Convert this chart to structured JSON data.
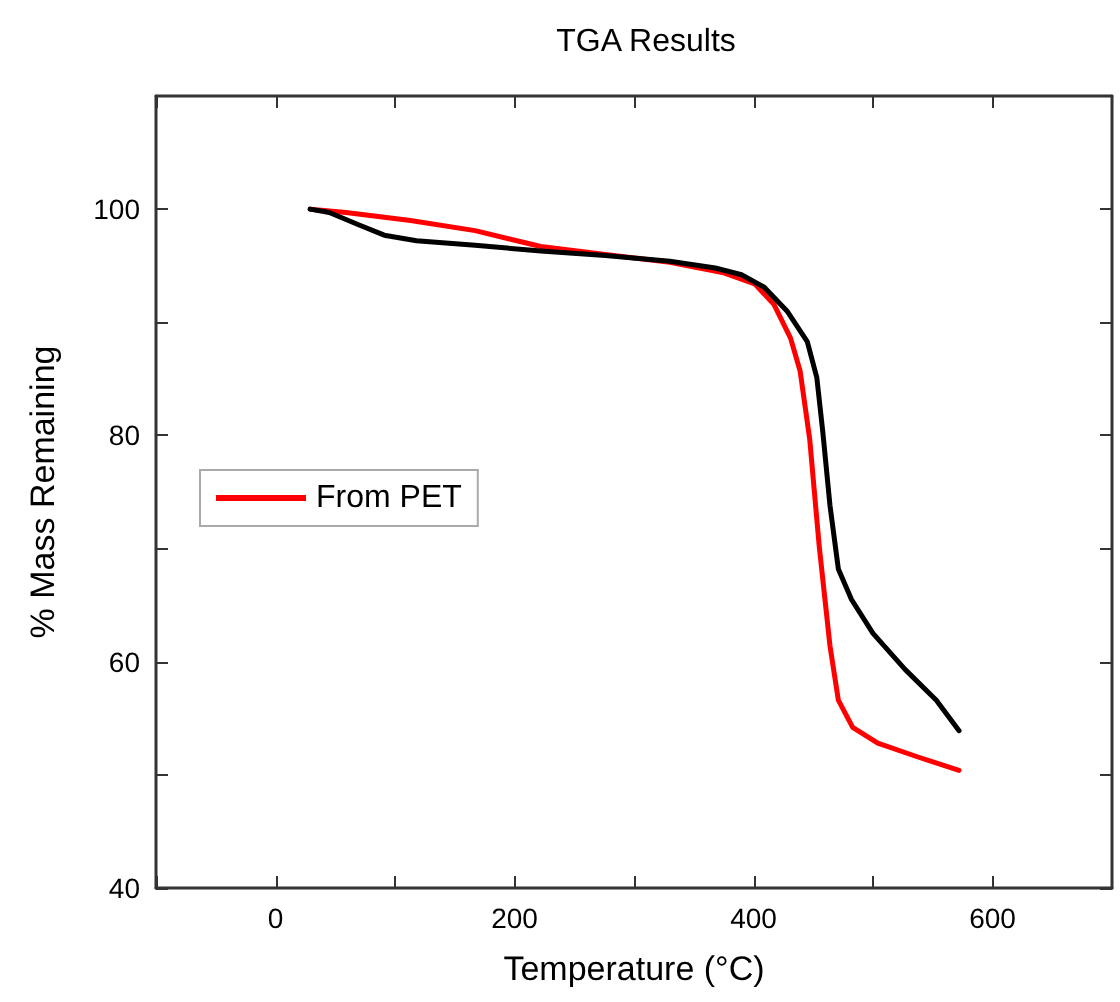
{
  "chart_data": {
    "type": "line",
    "title": "TGA Results",
    "xlabel": "Temperature (°C)",
    "ylabel": "% Mass Remaining",
    "xlim": [
      -100,
      700
    ],
    "xticks": [
      {
        "value": -100,
        "label": null
      },
      0,
      {
        "value": 100,
        "label": null
      },
      200,
      {
        "value": 300,
        "label": null
      },
      400,
      {
        "value": 500,
        "label": null
      },
      600
    ],
    "ylim": [
      40,
      110
    ],
    "yticks": [
      40,
      {
        "value": 50,
        "label": null
      },
      60,
      {
        "value": 70,
        "label": null
      },
      80,
      {
        "value": 90,
        "label": null
      },
      100
    ],
    "grid": false,
    "legend": "left",
    "marker": "none",
    "line_style": "solid",
    "series": [
      {
        "name": "From PET",
        "color": "#ff0000",
        "x": [
          29,
          59,
          113,
          167,
          222,
          276,
          330,
          374,
          401,
          417,
          431,
          439,
          447,
          455,
          464,
          471,
          483,
          504,
          537,
          572
        ],
        "values": [
          100,
          99.7,
          99.0,
          98.1,
          96.7,
          96.0,
          95.3,
          94.4,
          93.4,
          91.6,
          88.6,
          85.7,
          79.7,
          70.2,
          61.4,
          56.6,
          54.2,
          52.8,
          51.6,
          50.4
        ]
      },
      {
        "color": "#000000",
        "x": [
          29,
          45,
          70,
          91,
          118,
          167,
          222,
          276,
          330,
          368,
          390,
          409,
          428,
          445,
          453,
          458,
          464,
          471,
          482,
          500,
          527,
          553,
          572
        ],
        "values": [
          100,
          99.7,
          98.6,
          97.7,
          97.2,
          96.8,
          96.3,
          95.9,
          95.4,
          94.8,
          94.2,
          93.1,
          91.0,
          88.3,
          85.1,
          80.3,
          73.8,
          68.2,
          65.5,
          62.5,
          59.3,
          56.6,
          53.9
        ]
      }
    ]
  }
}
